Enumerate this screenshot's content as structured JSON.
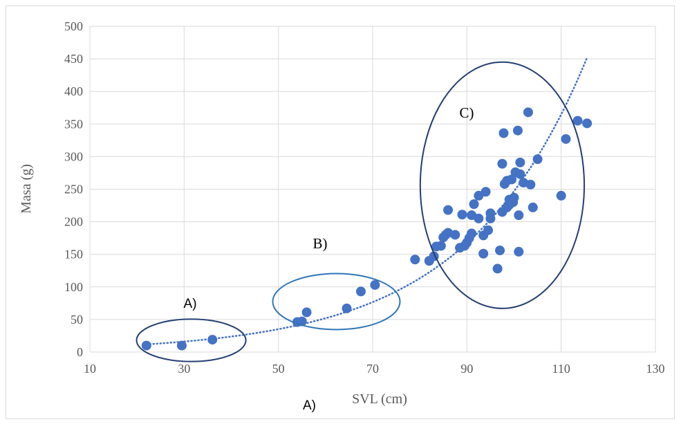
{
  "chart_data": {
    "type": "scatter",
    "xlabel": "SVL (cm)",
    "ylabel": "Masa (g)",
    "xlim": [
      10,
      130
    ],
    "ylim": [
      0,
      500
    ],
    "x_ticks": [
      "10",
      "30",
      "50",
      "70",
      "90",
      "110",
      "130"
    ],
    "y_ticks": [
      "0",
      "50",
      "100",
      "150",
      "200",
      "250",
      "300",
      "350",
      "400",
      "450",
      "500"
    ],
    "grid": "vertical and horizontal major gridlines",
    "marker_color": "#4472c4",
    "trendline": {
      "type": "exponential",
      "style": "dotted",
      "color": "#4472c4",
      "x_range": [
        22,
        115.5
      ],
      "equation_params": {
        "a": 5.0,
        "b": 0.039
      }
    },
    "points": [
      [
        22,
        10
      ],
      [
        29.5,
        10
      ],
      [
        36,
        19
      ],
      [
        54,
        46
      ],
      [
        55,
        47
      ],
      [
        56,
        61
      ],
      [
        64.5,
        67
      ],
      [
        67.5,
        93
      ],
      [
        70.5,
        103
      ],
      [
        79,
        142
      ],
      [
        82,
        140
      ],
      [
        83,
        147
      ],
      [
        83.5,
        162
      ],
      [
        84.5,
        163
      ],
      [
        85,
        176
      ],
      [
        85.5,
        180
      ],
      [
        86,
        218
      ],
      [
        86,
        183
      ],
      [
        87.5,
        180
      ],
      [
        88.5,
        160
      ],
      [
        89,
        211
      ],
      [
        89.5,
        163
      ],
      [
        90,
        168
      ],
      [
        90.5,
        175
      ],
      [
        91,
        210
      ],
      [
        91,
        182
      ],
      [
        91.5,
        227
      ],
      [
        92.5,
        240
      ],
      [
        92.5,
        205
      ],
      [
        93.5,
        179
      ],
      [
        93.5,
        151
      ],
      [
        94,
        246
      ],
      [
        94.5,
        187
      ],
      [
        95,
        213
      ],
      [
        95,
        205
      ],
      [
        96.5,
        128
      ],
      [
        97,
        156
      ],
      [
        97.5,
        289
      ],
      [
        97.5,
        215
      ],
      [
        97.8,
        336
      ],
      [
        98,
        258
      ],
      [
        98.5,
        263
      ],
      [
        98.5,
        222
      ],
      [
        99,
        234
      ],
      [
        99,
        226
      ],
      [
        99.5,
        265
      ],
      [
        99.8,
        230
      ],
      [
        100,
        237
      ],
      [
        100.3,
        276
      ],
      [
        100.8,
        340
      ],
      [
        101,
        154
      ],
      [
        101,
        210
      ],
      [
        101.3,
        291
      ],
      [
        101.3,
        273
      ],
      [
        102,
        260
      ],
      [
        103,
        368
      ],
      [
        103.5,
        257
      ],
      [
        104,
        222
      ],
      [
        105,
        296
      ],
      [
        110,
        240
      ],
      [
        111,
        327
      ],
      [
        113.5,
        355
      ],
      [
        115.5,
        351
      ]
    ],
    "annotations": {
      "groups": [
        {
          "label": "A)",
          "center": [
            31.5,
            18
          ],
          "radius_x": 11.6,
          "radius_y": 32.5
        },
        {
          "label": "B)",
          "center": [
            62.3,
            77.5
          ],
          "radius_x": 13.5,
          "radius_y": 43
        },
        {
          "label": "C)",
          "center": [
            97.5,
            256
          ],
          "radius_x": 17.4,
          "radius_y": 189
        }
      ],
      "bottom_label": "A)"
    }
  }
}
